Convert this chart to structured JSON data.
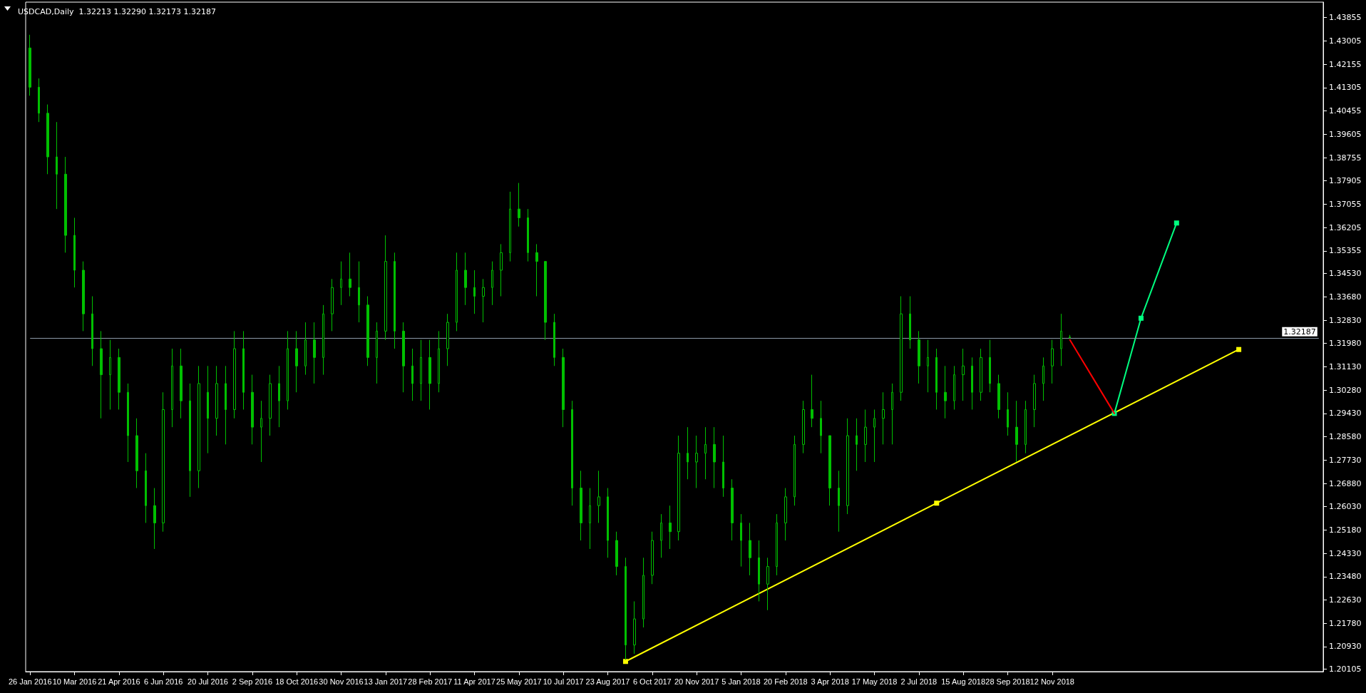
{
  "chart_data": {
    "type": "candlestick",
    "title": "USDCAD,Daily  1.32213 1.32290 1.32173 1.32187",
    "color": "#00c000",
    "grid": false,
    "categories": [
      "26 Jan 2016",
      null,
      null,
      null,
      null,
      "10 Mar 2016",
      null,
      null,
      null,
      null,
      "21 Apr 2016",
      null,
      null,
      null,
      null,
      "6 Jun 2016",
      null,
      null,
      null,
      null,
      "20 Jul 2016",
      null,
      null,
      null,
      null,
      "2 Sep 2016",
      null,
      null,
      null,
      null,
      "18 Oct 2016",
      null,
      null,
      null,
      null,
      "30 Nov 2016",
      null,
      null,
      null,
      null,
      "13 Jan 2017",
      null,
      null,
      null,
      null,
      "28 Feb 2017",
      null,
      null,
      null,
      null,
      "11 Apr 2017",
      null,
      null,
      null,
      null,
      "25 May 2017",
      null,
      null,
      null,
      null,
      "10 Jul 2017",
      null,
      null,
      null,
      null,
      "23 Aug 2017",
      null,
      null,
      null,
      null,
      "6 Oct 2017",
      null,
      null,
      null,
      null,
      "20 Nov 2017",
      null,
      null,
      null,
      null,
      "5 Jan 2018",
      null,
      null,
      null,
      null,
      "20 Feb 2018",
      null,
      null,
      null,
      null,
      "3 Apr 2018",
      null,
      null,
      null,
      null,
      "17 May 2018",
      null,
      null,
      null,
      null,
      "2 Jul 2018",
      null,
      null,
      null,
      null,
      "15 Aug 2018",
      null,
      null,
      null,
      null,
      "28 Sep 2018",
      null,
      null,
      null,
      null,
      "12 Nov 2018",
      null,
      null,
      null,
      null,
      null,
      null,
      null,
      null,
      null,
      null,
      null,
      null,
      null,
      null,
      null,
      null,
      null,
      null,
      null,
      null,
      null,
      null,
      null,
      null,
      null,
      null,
      null,
      null,
      null,
      null
    ],
    "ohlc": [
      [
        1.4275,
        1.4323,
        1.4101,
        1.4132
      ],
      [
        1.4132,
        1.4164,
        1.4005,
        1.4037
      ],
      [
        1.4037,
        1.4069,
        1.3815,
        1.3878
      ],
      [
        1.3878,
        1.4005,
        1.3688,
        1.3815
      ],
      [
        1.3815,
        1.3878,
        1.3529,
        1.3592
      ],
      [
        1.3592,
        1.3656,
        1.3402,
        1.3465
      ],
      [
        1.3465,
        1.3497,
        1.3243,
        1.3306
      ],
      [
        1.3306,
        1.337,
        1.3116,
        1.3179
      ],
      [
        1.3179,
        1.3243,
        1.2925,
        1.3084
      ],
      [
        1.3084,
        1.3211,
        1.2957,
        1.3147
      ],
      [
        1.3147,
        1.3179,
        1.2957,
        1.302
      ],
      [
        1.302,
        1.3052,
        1.2766,
        1.2862
      ],
      [
        1.2862,
        1.2925,
        1.2671,
        1.2734
      ],
      [
        1.2734,
        1.2798,
        1.2544,
        1.2607
      ],
      [
        1.2607,
        1.2671,
        1.2449,
        1.2544
      ],
      [
        1.2544,
        1.302,
        1.2512,
        1.2957
      ],
      [
        1.2957,
        1.3179,
        1.2893,
        1.3116
      ],
      [
        1.3116,
        1.3179,
        1.2925,
        1.2989
      ],
      [
        1.2989,
        1.3052,
        1.2639,
        1.2734
      ],
      [
        1.2734,
        1.3116,
        1.2671,
        1.3052
      ],
      [
        1.302,
        1.3116,
        1.2798,
        1.2925
      ],
      [
        1.2925,
        1.3116,
        1.2862,
        1.3052
      ],
      [
        1.3052,
        1.3116,
        1.283,
        1.2957
      ],
      [
        1.2957,
        1.3243,
        1.2925,
        1.3179
      ],
      [
        1.3179,
        1.3243,
        1.2957,
        1.302
      ],
      [
        1.302,
        1.3084,
        1.283,
        1.2893
      ],
      [
        1.2893,
        1.2989,
        1.2766,
        1.2925
      ],
      [
        1.2925,
        1.3084,
        1.2862,
        1.3052
      ],
      [
        1.3052,
        1.3116,
        1.2893,
        1.2989
      ],
      [
        1.2989,
        1.3243,
        1.2957,
        1.3179
      ],
      [
        1.3179,
        1.3243,
        1.302,
        1.3116
      ],
      [
        1.3116,
        1.3275,
        1.3084,
        1.3211
      ],
      [
        1.3211,
        1.3275,
        1.3052,
        1.3147
      ],
      [
        1.3147,
        1.3338,
        1.3084,
        1.3306
      ],
      [
        1.3306,
        1.3433,
        1.3243,
        1.3402
      ],
      [
        1.3402,
        1.3497,
        1.3338,
        1.3433
      ],
      [
        1.3433,
        1.3529,
        1.337,
        1.3402
      ],
      [
        1.3402,
        1.3497,
        1.3275,
        1.3338
      ],
      [
        1.3338,
        1.337,
        1.3116,
        1.3147
      ],
      [
        1.3147,
        1.3275,
        1.3052,
        1.3243
      ],
      [
        1.3243,
        1.3592,
        1.3211,
        1.3497
      ],
      [
        1.3497,
        1.3529,
        1.3179,
        1.3243
      ],
      [
        1.3243,
        1.3275,
        1.302,
        1.3116
      ],
      [
        1.3116,
        1.3179,
        1.2989,
        1.3052
      ],
      [
        1.3052,
        1.3211,
        1.2989,
        1.3147
      ],
      [
        1.3147,
        1.3211,
        1.2957,
        1.3052
      ],
      [
        1.3052,
        1.3243,
        1.302,
        1.3179
      ],
      [
        1.3179,
        1.3306,
        1.3116,
        1.3275
      ],
      [
        1.3275,
        1.3529,
        1.3243,
        1.3465
      ],
      [
        1.3465,
        1.3529,
        1.3338,
        1.3402
      ],
      [
        1.3402,
        1.3465,
        1.3306,
        1.337
      ],
      [
        1.337,
        1.3433,
        1.3275,
        1.3402
      ],
      [
        1.3402,
        1.3497,
        1.3338,
        1.3465
      ],
      [
        1.3465,
        1.356,
        1.337,
        1.3529
      ],
      [
        1.3529,
        1.3751,
        1.3497,
        1.3688
      ],
      [
        1.3688,
        1.3783,
        1.3624,
        1.3656
      ],
      [
        1.3656,
        1.3688,
        1.3497,
        1.3529
      ],
      [
        1.3529,
        1.356,
        1.337,
        1.3497
      ],
      [
        1.3497,
        1.3497,
        1.3211,
        1.3275
      ],
      [
        1.3275,
        1.3306,
        1.3116,
        1.3147
      ],
      [
        1.3147,
        1.3179,
        1.2893,
        1.2957
      ],
      [
        1.2957,
        1.2989,
        1.2607,
        1.2671
      ],
      [
        1.2671,
        1.2734,
        1.248,
        1.2544
      ],
      [
        1.2544,
        1.2671,
        1.2449,
        1.2607
      ],
      [
        1.2607,
        1.2734,
        1.2544,
        1.2639
      ],
      [
        1.2639,
        1.2671,
        1.2417,
        1.248
      ],
      [
        1.248,
        1.2512,
        1.2353,
        1.2385
      ],
      [
        1.2385,
        1.2417,
        1.2045,
        1.2099
      ],
      [
        1.2099,
        1.2258,
        1.2067,
        1.2194
      ],
      [
        1.2194,
        1.2417,
        1.2163,
        1.2353
      ],
      [
        1.2353,
        1.2512,
        1.2321,
        1.248
      ],
      [
        1.248,
        1.2576,
        1.2417,
        1.2544
      ],
      [
        1.2544,
        1.2607,
        1.2449,
        1.2512
      ],
      [
        1.2512,
        1.2862,
        1.248,
        1.2798
      ],
      [
        1.2798,
        1.2893,
        1.2703,
        1.2766
      ],
      [
        1.2766,
        1.2862,
        1.2671,
        1.2798
      ],
      [
        1.2798,
        1.2893,
        1.2703,
        1.283
      ],
      [
        1.283,
        1.2893,
        1.2671,
        1.2766
      ],
      [
        1.2766,
        1.2862,
        1.2639,
        1.2671
      ],
      [
        1.2671,
        1.2703,
        1.248,
        1.2544
      ],
      [
        1.2544,
        1.2576,
        1.2385,
        1.248
      ],
      [
        1.248,
        1.2544,
        1.2353,
        1.2417
      ],
      [
        1.2417,
        1.248,
        1.2258,
        1.2321
      ],
      [
        1.2321,
        1.2417,
        1.2226,
        1.2385
      ],
      [
        1.2385,
        1.2576,
        1.2353,
        1.2544
      ],
      [
        1.2544,
        1.2671,
        1.248,
        1.2639
      ],
      [
        1.2639,
        1.2862,
        1.2607,
        1.283
      ],
      [
        1.283,
        1.2989,
        1.2798,
        1.2957
      ],
      [
        1.2957,
        1.3084,
        1.2893,
        1.2925
      ],
      [
        1.2925,
        1.2989,
        1.2798,
        1.2862
      ],
      [
        1.2862,
        1.2862,
        1.2607,
        1.2671
      ],
      [
        1.2671,
        1.2734,
        1.2512,
        1.2607
      ],
      [
        1.2607,
        1.2925,
        1.2576,
        1.2862
      ],
      [
        1.2862,
        1.2925,
        1.2734,
        1.283
      ],
      [
        1.283,
        1.2957,
        1.2766,
        1.2893
      ],
      [
        1.2893,
        1.2957,
        1.2766,
        1.2925
      ],
      [
        1.2925,
        1.302,
        1.283,
        1.2957
      ],
      [
        1.2957,
        1.3052,
        1.283,
        1.302
      ],
      [
        1.302,
        1.337,
        1.2989,
        1.3306
      ],
      [
        1.3306,
        1.337,
        1.3179,
        1.3211
      ],
      [
        1.3211,
        1.3243,
        1.3052,
        1.3116
      ],
      [
        1.3116,
        1.3211,
        1.302,
        1.3147
      ],
      [
        1.3147,
        1.3179,
        1.2957,
        1.302
      ],
      [
        1.302,
        1.3116,
        1.2925,
        1.2989
      ],
      [
        1.2989,
        1.3116,
        1.2957,
        1.3084
      ],
      [
        1.3084,
        1.3179,
        1.2989,
        1.3116
      ],
      [
        1.3116,
        1.3147,
        1.2957,
        1.302
      ],
      [
        1.302,
        1.3179,
        1.2989,
        1.3147
      ],
      [
        1.3147,
        1.3211,
        1.302,
        1.3052
      ],
      [
        1.3052,
        1.3084,
        1.2925,
        1.2957
      ],
      [
        1.2957,
        1.302,
        1.2862,
        1.2893
      ],
      [
        1.2893,
        1.2989,
        1.2766,
        1.283
      ],
      [
        1.283,
        1.2989,
        1.2798,
        1.2957
      ],
      [
        1.2957,
        1.3084,
        1.2893,
        1.3052
      ],
      [
        1.3052,
        1.3147,
        1.2989,
        1.3116
      ],
      [
        1.3116,
        1.3211,
        1.3052,
        1.3179
      ],
      [
        1.3179,
        1.3306,
        1.3116,
        1.3243
      ],
      [
        1.32213,
        1.3229,
        1.32173,
        1.32187
      ],
      null,
      null,
      null,
      null,
      null,
      null,
      null,
      null,
      null,
      null,
      null,
      null,
      null,
      null,
      null,
      null,
      null,
      null,
      null,
      null,
      null,
      null,
      null,
      null,
      null,
      null,
      null,
      null
    ],
    "series": [
      {
        "type": "line",
        "color": "#ffff00",
        "marker": "square",
        "values": [
          null,
          null,
          null,
          null,
          null,
          null,
          null,
          null,
          null,
          null,
          null,
          null,
          null,
          null,
          null,
          null,
          null,
          null,
          null,
          null,
          null,
          null,
          null,
          null,
          null,
          null,
          null,
          null,
          null,
          null,
          null,
          null,
          null,
          null,
          null,
          null,
          null,
          null,
          null,
          null,
          null,
          null,
          null,
          null,
          null,
          null,
          null,
          null,
          null,
          null,
          null,
          null,
          null,
          null,
          null,
          null,
          null,
          null,
          null,
          null,
          null,
          null,
          null,
          null,
          null,
          null,
          null,
          1.2039,
          null,
          null,
          null,
          null,
          null,
          null,
          null,
          null,
          null,
          null,
          null,
          null,
          null,
          null,
          null,
          null,
          null,
          null,
          null,
          null,
          null,
          null,
          null,
          null,
          null,
          null,
          null,
          null,
          null,
          null,
          null,
          null,
          null,
          null,
          1.2616,
          null,
          null,
          null,
          null,
          null,
          null,
          null,
          null,
          null,
          null,
          null,
          null,
          null,
          null,
          null,
          null,
          null,
          null,
          null,
          null,
          null,
          null,
          null,
          null,
          null,
          null,
          null,
          null,
          null,
          null,
          null,
          null,
          null,
          1.3176,
          null,
          null,
          null,
          null,
          null,
          null,
          null,
          null,
          null
        ]
      },
      {
        "type": "line",
        "color": "#ff0000",
        "marker": "none",
        "values": [
          null,
          null,
          null,
          null,
          null,
          null,
          null,
          null,
          null,
          null,
          null,
          null,
          null,
          null,
          null,
          null,
          null,
          null,
          null,
          null,
          null,
          null,
          null,
          null,
          null,
          null,
          null,
          null,
          null,
          null,
          null,
          null,
          null,
          null,
          null,
          null,
          null,
          null,
          null,
          null,
          null,
          null,
          null,
          null,
          null,
          null,
          null,
          null,
          null,
          null,
          null,
          null,
          null,
          null,
          null,
          null,
          null,
          null,
          null,
          null,
          null,
          null,
          null,
          null,
          null,
          null,
          null,
          null,
          null,
          null,
          null,
          null,
          null,
          null,
          null,
          null,
          null,
          null,
          null,
          null,
          null,
          null,
          null,
          null,
          null,
          null,
          null,
          null,
          null,
          null,
          null,
          null,
          null,
          null,
          null,
          null,
          null,
          null,
          null,
          null,
          null,
          null,
          null,
          null,
          null,
          null,
          null,
          null,
          null,
          null,
          null,
          null,
          null,
          null,
          null,
          null,
          null,
          1.3211,
          null,
          null,
          null,
          null,
          1.2943,
          null,
          null,
          null,
          null,
          null,
          null,
          null,
          null,
          null,
          null,
          null,
          null,
          null,
          null,
          null,
          null,
          null,
          null,
          null,
          null,
          null,
          null,
          null
        ]
      },
      {
        "type": "line",
        "color": "#00ff80",
        "marker": "square",
        "values": [
          null,
          null,
          null,
          null,
          null,
          null,
          null,
          null,
          null,
          null,
          null,
          null,
          null,
          null,
          null,
          null,
          null,
          null,
          null,
          null,
          null,
          null,
          null,
          null,
          null,
          null,
          null,
          null,
          null,
          null,
          null,
          null,
          null,
          null,
          null,
          null,
          null,
          null,
          null,
          null,
          null,
          null,
          null,
          null,
          null,
          null,
          null,
          null,
          null,
          null,
          null,
          null,
          null,
          null,
          null,
          null,
          null,
          null,
          null,
          null,
          null,
          null,
          null,
          null,
          null,
          null,
          null,
          null,
          null,
          null,
          null,
          null,
          null,
          null,
          null,
          null,
          null,
          null,
          null,
          null,
          null,
          null,
          null,
          null,
          null,
          null,
          null,
          null,
          null,
          null,
          null,
          null,
          null,
          null,
          null,
          null,
          null,
          null,
          null,
          null,
          null,
          null,
          null,
          null,
          null,
          null,
          null,
          null,
          null,
          null,
          null,
          null,
          null,
          null,
          null,
          null,
          null,
          null,
          null,
          null,
          null,
          null,
          1.2943,
          null,
          null,
          1.329,
          null,
          null,
          null,
          1.3637,
          null,
          null,
          null,
          null,
          null,
          null,
          null,
          null,
          null,
          null,
          null,
          null,
          null,
          null,
          null,
          null
        ]
      }
    ],
    "ylim": [
      1.2002,
      1.4442
    ],
    "yticks": [
      1.20105,
      {
        "value": 1.2093,
        "label": "1.20930"
      },
      {
        "value": 1.2178,
        "label": "1.21780"
      },
      {
        "value": 1.2263,
        "label": "1.22630"
      },
      {
        "value": 1.2348,
        "label": "1.23480"
      },
      {
        "value": 1.2433,
        "label": "1.24330"
      },
      {
        "value": 1.2518,
        "label": "1.25180"
      },
      {
        "value": 1.2603,
        "label": "1.26030"
      },
      {
        "value": 1.2688,
        "label": "1.26880"
      },
      {
        "value": 1.2773,
        "label": "1.27730"
      },
      {
        "value": 1.2858,
        "label": "1.28580"
      },
      {
        "value": 1.2943,
        "label": "1.29430"
      },
      {
        "value": 1.3028,
        "label": "1.30280"
      },
      {
        "value": 1.3113,
        "label": "1.31130"
      },
      {
        "value": 1.3198,
        "label": "1.31980"
      },
      {
        "value": 1.3283,
        "label": "1.32830"
      },
      {
        "value": 1.3368,
        "label": "1.33680"
      },
      {
        "value": 1.3453,
        "label": "1.34530"
      },
      1.35355,
      1.36205,
      1.37055,
      1.37905,
      1.38755,
      1.39605,
      1.40455,
      1.41305,
      1.42155,
      1.43005,
      1.43855
    ],
    "ref_lines": [
      {
        "axis": "y",
        "value": 1.32187,
        "label": "1.32187",
        "color": "#8c9aa8"
      }
    ]
  }
}
